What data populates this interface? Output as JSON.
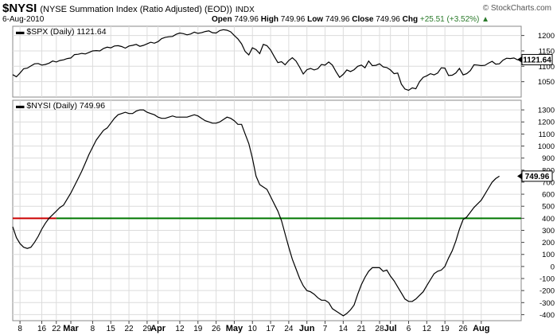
{
  "header": {
    "symbol": "$NYSI",
    "description": "(NYSE Summation Index (Ratio Adjusted) (EOD))",
    "exchange": "INDX",
    "credit": "© StockCharts.com",
    "date": "6-Aug-2010",
    "open_label": "Open",
    "open": "749.96",
    "high_label": "High",
    "high": "749.96",
    "low_label": "Low",
    "low": "749.96",
    "close_label": "Close",
    "close": "749.96",
    "chg_label": "Chg",
    "chg": "+25.51 (+3.52%)",
    "chg_icon": "up-triangle-icon",
    "chg_color": "#2a7a2a"
  },
  "chart_data": [
    {
      "type": "line",
      "legend": "$SPX (Daily) 1121.64",
      "last_value": "1121.64",
      "ylim": [
        1000,
        1230
      ],
      "yticks": [
        1050,
        1100,
        1150,
        1200
      ],
      "grid": true,
      "series": [
        {
          "color": "#000000",
          "values": [
            1073,
            1066,
            1078,
            1092,
            1094,
            1101,
            1108,
            1109,
            1104,
            1106,
            1110,
            1117,
            1114,
            1119,
            1121,
            1125,
            1127,
            1138,
            1139,
            1142,
            1140,
            1145,
            1150,
            1151,
            1150,
            1158,
            1162,
            1160,
            1166,
            1167,
            1164,
            1159,
            1166,
            1168,
            1171,
            1165,
            1168,
            1173,
            1178,
            1175,
            1180,
            1190,
            1194,
            1196,
            1197,
            1204,
            1208,
            1206,
            1202,
            1205,
            1211,
            1207,
            1209,
            1213,
            1215,
            1209,
            1208,
            1216,
            1219,
            1217,
            1212,
            1200,
            1189,
            1173,
            1148,
            1137,
            1160,
            1154,
            1141,
            1171,
            1167,
            1153,
            1132,
            1112,
            1115,
            1105,
            1119,
            1128,
            1117,
            1097,
            1075,
            1089,
            1093,
            1088,
            1092,
            1106,
            1104,
            1114,
            1104,
            1083,
            1064,
            1074,
            1088,
            1083,
            1089,
            1100,
            1104,
            1095,
            1117,
            1102,
            1103,
            1108,
            1098,
            1096,
            1088,
            1076,
            1078,
            1042,
            1026,
            1022,
            1030,
            1027,
            1050,
            1064,
            1069,
            1076,
            1072,
            1078,
            1095,
            1094,
            1070,
            1071,
            1078,
            1093,
            1072,
            1076,
            1086,
            1105,
            1104,
            1102,
            1103,
            1110,
            1116,
            1107,
            1108,
            1120,
            1126,
            1125,
            1127,
            1121,
            1121.64
          ]
        }
      ]
    },
    {
      "type": "line",
      "legend": "$NYSI (Daily) 749.96",
      "last_value": "749.96",
      "ylim": [
        -450,
        1380
      ],
      "yticks": [
        -400,
        -300,
        -200,
        -100,
        0,
        100,
        200,
        300,
        400,
        500,
        600,
        700,
        800,
        900,
        1000,
        1100,
        1200,
        1300
      ],
      "grid": true,
      "reference_lines": [
        {
          "value": 400,
          "color": "#cc0000",
          "x_from": 0,
          "x_to": 12
        },
        {
          "value": 400,
          "color": "#007700",
          "x_from": 12,
          "x_to": 140
        }
      ],
      "series": [
        {
          "color": "#000000",
          "values": [
            330,
            240,
            190,
            160,
            150,
            160,
            200,
            250,
            310,
            360,
            400,
            430,
            460,
            490,
            510,
            560,
            610,
            670,
            730,
            790,
            860,
            930,
            990,
            1050,
            1090,
            1130,
            1150,
            1190,
            1230,
            1260,
            1270,
            1280,
            1270,
            1270,
            1290,
            1300,
            1300,
            1280,
            1270,
            1260,
            1240,
            1230,
            1230,
            1240,
            1250,
            1240,
            1240,
            1240,
            1240,
            1250,
            1260,
            1250,
            1230,
            1210,
            1200,
            1190,
            1190,
            1200,
            1220,
            1240,
            1230,
            1210,
            1180,
            1180,
            1100,
            1020,
            900,
            750,
            680,
            660,
            640,
            580,
            520,
            460,
            380,
            270,
            160,
            60,
            -20,
            -100,
            -160,
            -200,
            -210,
            -230,
            -260,
            -280,
            -280,
            -300,
            -350,
            -370,
            -390,
            -410,
            -390,
            -360,
            -320,
            -230,
            -150,
            -90,
            -40,
            -10,
            -10,
            -10,
            -40,
            -30,
            -80,
            -120,
            -170,
            -220,
            -270,
            -290,
            -290,
            -270,
            -240,
            -210,
            -160,
            -110,
            -60,
            -40,
            -30,
            0,
            70,
            130,
            210,
            310,
            390,
            410,
            450,
            490,
            520,
            550,
            600,
            650,
            700,
            730,
            749.96
          ]
        }
      ],
      "x_tick_labels": [
        "8",
        "16",
        "22",
        "Mar",
        "8",
        "15",
        "22",
        "29",
        "Apr",
        "12",
        "19",
        "26",
        "May",
        "10",
        "17",
        "24",
        "Jun",
        "7",
        "14",
        "21",
        "28",
        "Jul",
        "6",
        "12",
        "19",
        "26",
        "Aug"
      ]
    }
  ]
}
